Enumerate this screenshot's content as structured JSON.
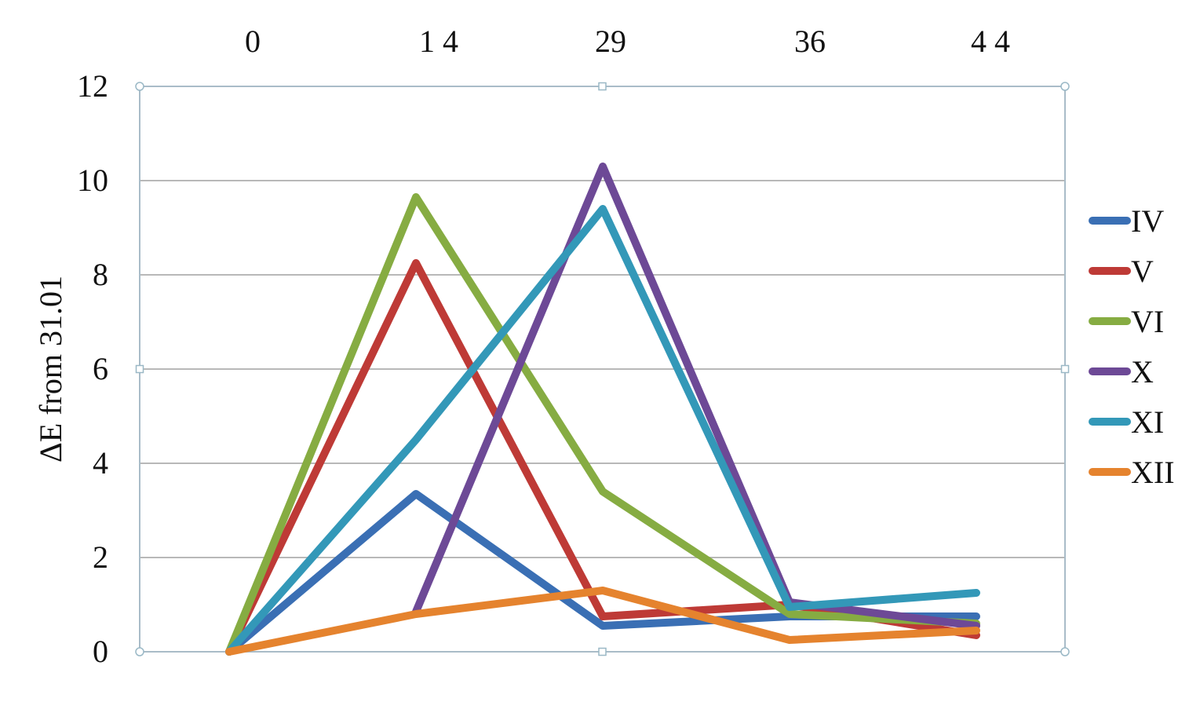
{
  "chart_data": {
    "type": "line",
    "categories": [
      "0",
      "1 4",
      "29",
      "36",
      "4 4"
    ],
    "ylabel": "ΔE  from 31.01",
    "ylim": [
      0,
      12
    ],
    "yticks": [
      "0",
      "2",
      "4",
      "6",
      "8",
      "10",
      "12"
    ],
    "xaxis_position": "top",
    "grid": true,
    "legend_position": "right",
    "series": [
      {
        "name": "IV",
        "color": "#3a6fb4",
        "values": [
          0,
          3.35,
          0.55,
          0.75,
          0.75
        ]
      },
      {
        "name": "V",
        "color": "#be3a36",
        "values": [
          0,
          8.25,
          0.75,
          1.0,
          0.35
        ]
      },
      {
        "name": "VI",
        "color": "#86ac42",
        "values": [
          0,
          9.65,
          3.4,
          0.8,
          0.6
        ]
      },
      {
        "name": "X",
        "color": "#6d4996",
        "values": [
          null,
          0.85,
          10.3,
          1.05,
          0.55
        ]
      },
      {
        "name": "XI",
        "color": "#3398b8",
        "values": [
          0,
          4.5,
          9.4,
          0.95,
          1.25
        ]
      },
      {
        "name": "XII",
        "color": "#e5832e",
        "values": [
          0,
          0.8,
          1.3,
          0.25,
          0.45
        ]
      }
    ]
  }
}
